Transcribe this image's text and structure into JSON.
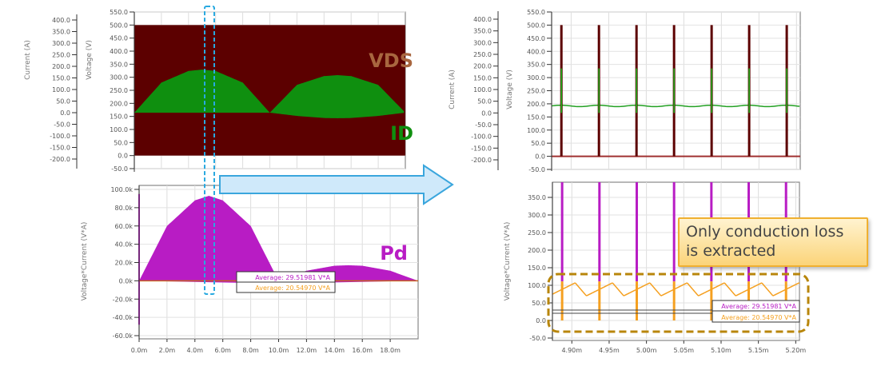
{
  "colors": {
    "vds": "#5c0000",
    "id": "#0f8f0f",
    "pd": "#b81cc4",
    "avg_orange": "#f5a020",
    "arrow": "#3aa6dd",
    "highlight": "#29a9e0",
    "dashed_box": "#b8860b"
  },
  "annotations": {
    "callout_line1": "Only conduction loss",
    "callout_line2": "is extracted",
    "vds_label": "VDS",
    "id_label": "ID",
    "pd_label": "Pd"
  },
  "chart_data": [
    {
      "type": "area",
      "id": "overall-vds-id",
      "xlim_ms": [
        0,
        20
      ],
      "ylabel_left": "Current (A)",
      "ylabel_right": "Voltage (V)",
      "current_ticks": [
        "400.0",
        "350.0",
        "300.0",
        "250.0",
        "200.0",
        "150.0",
        "100.0",
        "50.0",
        "0.0",
        "-50.0",
        "-100.0",
        "-150.0",
        "-200.0"
      ],
      "voltage_ticks": [
        "550.0",
        "500.0",
        "450.0",
        "400.0",
        "350.0",
        "300.0",
        "250.0",
        "200.0",
        "150.0",
        "100.0",
        "50.0",
        "0.0",
        "-50.0"
      ],
      "current_range": [
        -200,
        400
      ],
      "voltage_range": [
        -50,
        550
      ],
      "series": [
        {
          "name": "VDS",
          "unit": "V",
          "description_values": {
            "min": 0,
            "max": 500
          }
        },
        {
          "name": "ID",
          "unit": "A",
          "envelope_ms": [
            0,
            2,
            4,
            5,
            6,
            8,
            10,
            12,
            14,
            15,
            16,
            18,
            20
          ],
          "envelope_peak_A": [
            0,
            130,
            180,
            186,
            180,
            130,
            0,
            120,
            158,
            162,
            158,
            120,
            0
          ],
          "envelope_min_A": [
            0,
            0,
            0,
            0,
            0,
            0,
            0,
            -14,
            -23,
            -24,
            -23,
            -14,
            0
          ]
        }
      ],
      "grid": true
    },
    {
      "type": "area",
      "id": "overall-pd",
      "xlim_ms": [
        0,
        20
      ],
      "ylabel": "Voltage*Current (V*A)",
      "yticks": [
        "100.0k",
        "80.0k",
        "60.0k",
        "40.0k",
        "20.0k",
        "0.0k",
        "-20.0k",
        "-40.0k",
        "-60.0k"
      ],
      "ylim": [
        -60000,
        100000
      ],
      "xticks": [
        "0.0m",
        "2.0m",
        "4.0m",
        "6.0m",
        "8.0m",
        "10.0m",
        "12.0m",
        "14.0m",
        "16.0m",
        "18.0m"
      ],
      "series": [
        {
          "name": "Pd",
          "envelope_ms": [
            0,
            2,
            4,
            5,
            6,
            8,
            10,
            12,
            14,
            15,
            16,
            18,
            20
          ],
          "envelope_peak": [
            0,
            60000,
            88000,
            93000,
            88000,
            60000,
            0,
            11000,
            16500,
            17000,
            16500,
            11000,
            0
          ]
        }
      ],
      "legend": [
        "Average: 29.51981 V*A",
        "Average: 20.54970 V*A"
      ],
      "grid": true
    },
    {
      "type": "line",
      "id": "zoom-vds-id",
      "xlim_ms": [
        4.874,
        5.205
      ],
      "ylabel_left": "Current (A)",
      "ylabel_right": "Voltage (V)",
      "current_ticks": [
        "400.0",
        "350.0",
        "300.0",
        "250.0",
        "200.0",
        "150.0",
        "100.0",
        "50.0",
        "0.0",
        "-50.0",
        "-100.0",
        "-150.0",
        "-200.0"
      ],
      "voltage_ticks": [
        "550.0",
        "500.0",
        "450.0",
        "400.0",
        "350.0",
        "300.0",
        "250.0",
        "200.0",
        "150.0",
        "100.0",
        "50.0",
        "0.0",
        "-50.0"
      ],
      "switching_times_ms": [
        4.887,
        4.937,
        4.987,
        5.037,
        5.087,
        5.137,
        5.187
      ],
      "series": [
        {
          "name": "VDS",
          "off_V": 0,
          "spike_V": 500
        },
        {
          "name": "ID",
          "baseline_A": 30,
          "ripple_A": 3,
          "spike_A": 190
        }
      ],
      "grid": true
    },
    {
      "type": "line",
      "id": "zoom-pd",
      "xlim_ms": [
        4.874,
        5.205
      ],
      "ylabel": "Voltage*Current (V*A)",
      "yticks": [
        "350.0",
        "300.0",
        "250.0",
        "200.0",
        "150.0",
        "100.0",
        "50.0",
        "0.0",
        "-50.0"
      ],
      "ylim": [
        -50,
        390
      ],
      "xticks": [
        "4.90m",
        "4.95m",
        "5.00m",
        "5.05m",
        "5.10m",
        "5.15m",
        "5.20m"
      ],
      "series": [
        {
          "name": "Pd (conduction)",
          "sawtooth_min": 70,
          "sawtooth_max": 107
        }
      ],
      "averages": [
        29.51981,
        20.5497
      ],
      "legend": [
        "Average: 29.51981 V*A",
        "Average: 20.54970 V*A"
      ],
      "grid": true
    }
  ]
}
